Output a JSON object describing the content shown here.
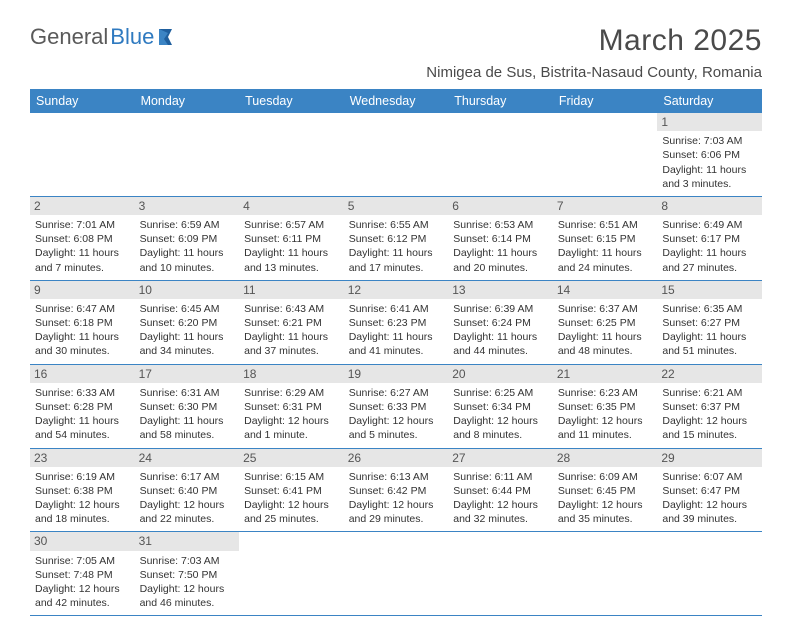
{
  "logo": {
    "word1": "General",
    "word2": "Blue"
  },
  "title": "March 2025",
  "location": "Nimigea de Sus, Bistrita-Nasaud County, Romania",
  "colors": {
    "header_bg": "#3b84c4",
    "header_text": "#ffffff",
    "daybar_bg": "#e6e6e6",
    "rule": "#3b84c4",
    "body_text": "#333333",
    "title_text": "#4a4a4a",
    "logo_gray": "#5a5a5a",
    "logo_blue": "#2f7ac0",
    "page_bg": "#ffffff"
  },
  "typography": {
    "title_size": 30,
    "location_size": 15,
    "th_size": 12.5,
    "cell_size": 10.5
  },
  "weekdays": [
    "Sunday",
    "Monday",
    "Tuesday",
    "Wednesday",
    "Thursday",
    "Friday",
    "Saturday"
  ],
  "weeks": [
    [
      null,
      null,
      null,
      null,
      null,
      null,
      {
        "n": "1",
        "sr": "Sunrise: 7:03 AM",
        "ss": "Sunset: 6:06 PM",
        "dl1": "Daylight: 11 hours",
        "dl2": "and 3 minutes."
      }
    ],
    [
      {
        "n": "2",
        "sr": "Sunrise: 7:01 AM",
        "ss": "Sunset: 6:08 PM",
        "dl1": "Daylight: 11 hours",
        "dl2": "and 7 minutes."
      },
      {
        "n": "3",
        "sr": "Sunrise: 6:59 AM",
        "ss": "Sunset: 6:09 PM",
        "dl1": "Daylight: 11 hours",
        "dl2": "and 10 minutes."
      },
      {
        "n": "4",
        "sr": "Sunrise: 6:57 AM",
        "ss": "Sunset: 6:11 PM",
        "dl1": "Daylight: 11 hours",
        "dl2": "and 13 minutes."
      },
      {
        "n": "5",
        "sr": "Sunrise: 6:55 AM",
        "ss": "Sunset: 6:12 PM",
        "dl1": "Daylight: 11 hours",
        "dl2": "and 17 minutes."
      },
      {
        "n": "6",
        "sr": "Sunrise: 6:53 AM",
        "ss": "Sunset: 6:14 PM",
        "dl1": "Daylight: 11 hours",
        "dl2": "and 20 minutes."
      },
      {
        "n": "7",
        "sr": "Sunrise: 6:51 AM",
        "ss": "Sunset: 6:15 PM",
        "dl1": "Daylight: 11 hours",
        "dl2": "and 24 minutes."
      },
      {
        "n": "8",
        "sr": "Sunrise: 6:49 AM",
        "ss": "Sunset: 6:17 PM",
        "dl1": "Daylight: 11 hours",
        "dl2": "and 27 minutes."
      }
    ],
    [
      {
        "n": "9",
        "sr": "Sunrise: 6:47 AM",
        "ss": "Sunset: 6:18 PM",
        "dl1": "Daylight: 11 hours",
        "dl2": "and 30 minutes."
      },
      {
        "n": "10",
        "sr": "Sunrise: 6:45 AM",
        "ss": "Sunset: 6:20 PM",
        "dl1": "Daylight: 11 hours",
        "dl2": "and 34 minutes."
      },
      {
        "n": "11",
        "sr": "Sunrise: 6:43 AM",
        "ss": "Sunset: 6:21 PM",
        "dl1": "Daylight: 11 hours",
        "dl2": "and 37 minutes."
      },
      {
        "n": "12",
        "sr": "Sunrise: 6:41 AM",
        "ss": "Sunset: 6:23 PM",
        "dl1": "Daylight: 11 hours",
        "dl2": "and 41 minutes."
      },
      {
        "n": "13",
        "sr": "Sunrise: 6:39 AM",
        "ss": "Sunset: 6:24 PM",
        "dl1": "Daylight: 11 hours",
        "dl2": "and 44 minutes."
      },
      {
        "n": "14",
        "sr": "Sunrise: 6:37 AM",
        "ss": "Sunset: 6:25 PM",
        "dl1": "Daylight: 11 hours",
        "dl2": "and 48 minutes."
      },
      {
        "n": "15",
        "sr": "Sunrise: 6:35 AM",
        "ss": "Sunset: 6:27 PM",
        "dl1": "Daylight: 11 hours",
        "dl2": "and 51 minutes."
      }
    ],
    [
      {
        "n": "16",
        "sr": "Sunrise: 6:33 AM",
        "ss": "Sunset: 6:28 PM",
        "dl1": "Daylight: 11 hours",
        "dl2": "and 54 minutes."
      },
      {
        "n": "17",
        "sr": "Sunrise: 6:31 AM",
        "ss": "Sunset: 6:30 PM",
        "dl1": "Daylight: 11 hours",
        "dl2": "and 58 minutes."
      },
      {
        "n": "18",
        "sr": "Sunrise: 6:29 AM",
        "ss": "Sunset: 6:31 PM",
        "dl1": "Daylight: 12 hours",
        "dl2": "and 1 minute."
      },
      {
        "n": "19",
        "sr": "Sunrise: 6:27 AM",
        "ss": "Sunset: 6:33 PM",
        "dl1": "Daylight: 12 hours",
        "dl2": "and 5 minutes."
      },
      {
        "n": "20",
        "sr": "Sunrise: 6:25 AM",
        "ss": "Sunset: 6:34 PM",
        "dl1": "Daylight: 12 hours",
        "dl2": "and 8 minutes."
      },
      {
        "n": "21",
        "sr": "Sunrise: 6:23 AM",
        "ss": "Sunset: 6:35 PM",
        "dl1": "Daylight: 12 hours",
        "dl2": "and 11 minutes."
      },
      {
        "n": "22",
        "sr": "Sunrise: 6:21 AM",
        "ss": "Sunset: 6:37 PM",
        "dl1": "Daylight: 12 hours",
        "dl2": "and 15 minutes."
      }
    ],
    [
      {
        "n": "23",
        "sr": "Sunrise: 6:19 AM",
        "ss": "Sunset: 6:38 PM",
        "dl1": "Daylight: 12 hours",
        "dl2": "and 18 minutes."
      },
      {
        "n": "24",
        "sr": "Sunrise: 6:17 AM",
        "ss": "Sunset: 6:40 PM",
        "dl1": "Daylight: 12 hours",
        "dl2": "and 22 minutes."
      },
      {
        "n": "25",
        "sr": "Sunrise: 6:15 AM",
        "ss": "Sunset: 6:41 PM",
        "dl1": "Daylight: 12 hours",
        "dl2": "and 25 minutes."
      },
      {
        "n": "26",
        "sr": "Sunrise: 6:13 AM",
        "ss": "Sunset: 6:42 PM",
        "dl1": "Daylight: 12 hours",
        "dl2": "and 29 minutes."
      },
      {
        "n": "27",
        "sr": "Sunrise: 6:11 AM",
        "ss": "Sunset: 6:44 PM",
        "dl1": "Daylight: 12 hours",
        "dl2": "and 32 minutes."
      },
      {
        "n": "28",
        "sr": "Sunrise: 6:09 AM",
        "ss": "Sunset: 6:45 PM",
        "dl1": "Daylight: 12 hours",
        "dl2": "and 35 minutes."
      },
      {
        "n": "29",
        "sr": "Sunrise: 6:07 AM",
        "ss": "Sunset: 6:47 PM",
        "dl1": "Daylight: 12 hours",
        "dl2": "and 39 minutes."
      }
    ],
    [
      {
        "n": "30",
        "sr": "Sunrise: 7:05 AM",
        "ss": "Sunset: 7:48 PM",
        "dl1": "Daylight: 12 hours",
        "dl2": "and 42 minutes."
      },
      {
        "n": "31",
        "sr": "Sunrise: 7:03 AM",
        "ss": "Sunset: 7:50 PM",
        "dl1": "Daylight: 12 hours",
        "dl2": "and 46 minutes."
      },
      null,
      null,
      null,
      null,
      null
    ]
  ]
}
